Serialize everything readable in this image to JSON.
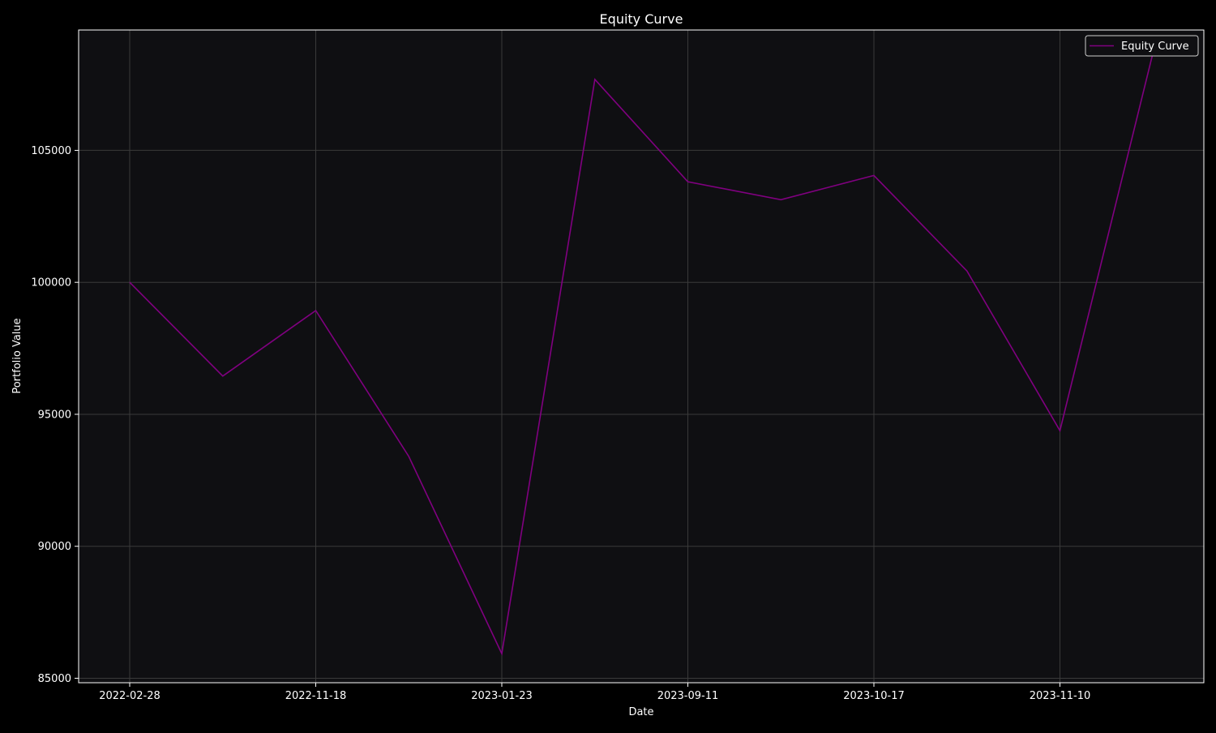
{
  "chart_data": {
    "type": "line",
    "title": "Equity Curve",
    "xlabel": "Date",
    "ylabel": "Portfolio Value",
    "x_tick_labels": [
      "2022-02-28",
      "2022-11-18",
      "2023-01-23",
      "2023-09-11",
      "2023-10-17",
      "2023-11-10"
    ],
    "y_ticks": [
      85000,
      90000,
      95000,
      100000,
      105000
    ],
    "ylim": [
      84830,
      109560
    ],
    "grid": true,
    "legend_position": "top-right",
    "series": [
      {
        "name": "Equity Curve",
        "color": "#800080",
        "values": [
          100000,
          96450,
          98930,
          93400,
          85930,
          107690,
          103810,
          103130,
          104050,
          100430,
          94380,
          108700
        ]
      }
    ]
  },
  "colors": {
    "background": "#000000",
    "plot_background": "#0f0f12",
    "grid": "#3a3a3a",
    "line": "#800080"
  }
}
